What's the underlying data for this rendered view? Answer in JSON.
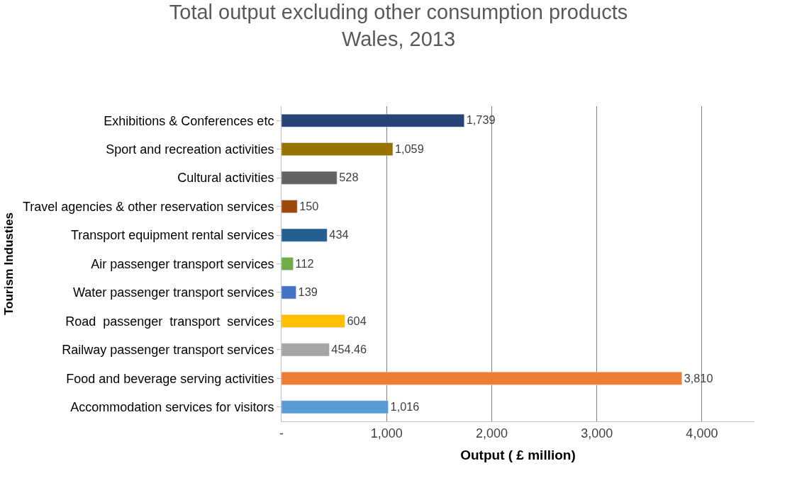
{
  "chart_data": {
    "type": "bar",
    "orientation": "horizontal",
    "title": "Total output excluding other consumption products\nWales, 2013",
    "xlabel": "Output ( £ million)",
    "ylabel": "Tourism Industies",
    "categories": [
      "Exhibitions & Conferences etc",
      "Sport and recreation activities",
      "Cultural activities",
      "Travel agencies & other reservation services",
      "Transport equipment rental services",
      "Air passenger transport services",
      "Water passenger transport services",
      "Road  passenger  transport  services",
      "Railway passenger transport services",
      "Food and beverage serving activities",
      "Accommodation services for visitors"
    ],
    "values": [
      1739,
      1059,
      528,
      150,
      434,
      112,
      139,
      604,
      454.46,
      3810,
      1016
    ],
    "value_labels": [
      "1,739",
      "1,059",
      "528",
      "150",
      "434",
      "112",
      "139",
      "604",
      "454.46",
      "3,810",
      "1,016"
    ],
    "colors": [
      "#264478",
      "#997300",
      "#636363",
      "#9e480e",
      "#255e91",
      "#70ad47",
      "#4472c4",
      "#ffc000",
      "#a5a5a5",
      "#ed7d31",
      "#5b9bd5"
    ],
    "xlim": [
      0,
      4500
    ],
    "xticks": [
      {
        "value": 0,
        "label": "-"
      },
      {
        "value": 1000,
        "label": "1,000"
      },
      {
        "value": 2000,
        "label": "2,000"
      },
      {
        "value": 3000,
        "label": "3,000"
      },
      {
        "value": 4000,
        "label": "4,000"
      }
    ],
    "grid": "x",
    "legend": false
  }
}
